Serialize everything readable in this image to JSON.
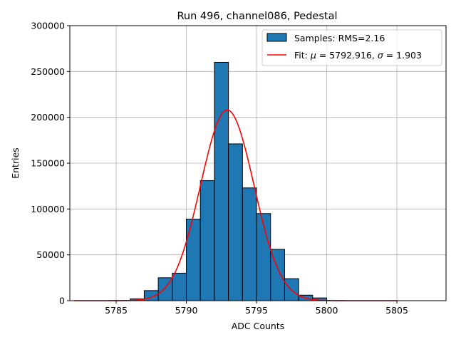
{
  "chart_data": {
    "type": "bar",
    "title": "Run 496, channel086, Pedestal",
    "xlabel": "ADC Counts",
    "ylabel": "Entries",
    "xlim": [
      5781.7,
      5808.5
    ],
    "ylim": [
      0,
      300000
    ],
    "grid": true,
    "legend_position": "top-right",
    "x_ticks": [
      5785,
      5790,
      5795,
      5800,
      5805
    ],
    "y_ticks": [
      0,
      50000,
      100000,
      150000,
      200000,
      250000,
      300000
    ],
    "bin_width": 1,
    "bins": [
      {
        "left": 5786,
        "value": 2000
      },
      {
        "left": 5787,
        "value": 11000
      },
      {
        "left": 5788,
        "value": 25000
      },
      {
        "left": 5789,
        "value": 30000
      },
      {
        "left": 5790,
        "value": 89000
      },
      {
        "left": 5791,
        "value": 131000
      },
      {
        "left": 5792,
        "value": 260000
      },
      {
        "left": 5793,
        "value": 171000
      },
      {
        "left": 5794,
        "value": 123000
      },
      {
        "left": 5795,
        "value": 95000
      },
      {
        "left": 5796,
        "value": 56000
      },
      {
        "left": 5797,
        "value": 24000
      },
      {
        "left": 5798,
        "value": 6000
      },
      {
        "left": 5799,
        "value": 3000
      }
    ],
    "fit": {
      "mu": 5792.916,
      "sigma": 1.903,
      "amplitude": 208000,
      "x_range": [
        5782,
        5805
      ]
    },
    "legend": {
      "samples_label": "Samples: RMS=2.16",
      "fit_prefix": "Fit: ",
      "fit_mu_symbol": "μ",
      "fit_mu_text": " = 5792.916, ",
      "fit_sigma_symbol": "σ",
      "fit_sigma_text": " = 1.903"
    },
    "colors": {
      "bar_fill": "#1f77b4",
      "bar_edge": "#000000",
      "fit_line": "#ff0000",
      "grid": "#b0b0b0"
    }
  }
}
